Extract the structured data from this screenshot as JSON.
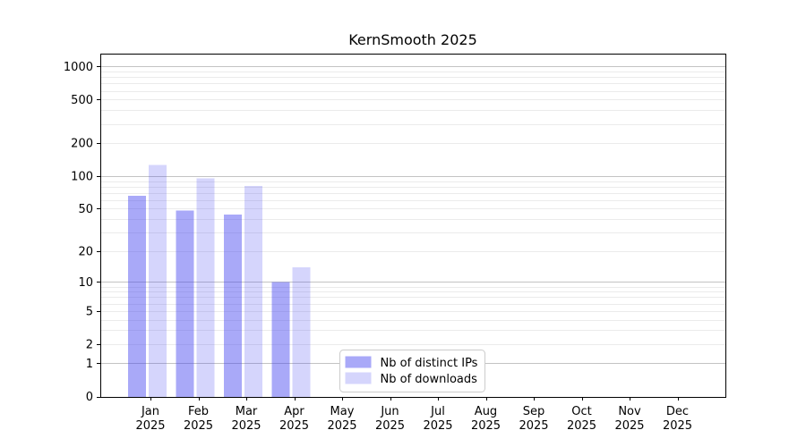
{
  "chart_data": {
    "type": "bar",
    "title": "KernSmooth 2025",
    "categories": [
      "Jan",
      "Feb",
      "Mar",
      "Apr",
      "May",
      "Jun",
      "Jul",
      "Aug",
      "Sep",
      "Oct",
      "Nov",
      "Dec"
    ],
    "category_year": "2025",
    "series": [
      {
        "name": "Nb of distinct IPs",
        "key": "distinct-ips",
        "color": "rgba(64,64,240,0.45)",
        "values": [
          66,
          48,
          44,
          10,
          0,
          0,
          0,
          0,
          0,
          0,
          0,
          0
        ]
      },
      {
        "name": "Nb of downloads",
        "key": "downloads",
        "color": "rgba(64,64,240,0.22)",
        "values": [
          127,
          95,
          81,
          14,
          0,
          0,
          0,
          0,
          0,
          0,
          0,
          0
        ]
      }
    ],
    "y_ticks": [
      0,
      1,
      2,
      5,
      10,
      20,
      50,
      100,
      200,
      500,
      1000
    ],
    "y_scale": "log1p",
    "ylim": [
      0,
      1310
    ],
    "xlabel": "",
    "ylabel": "",
    "grid": {
      "major_values": [
        1,
        10,
        100,
        1000
      ],
      "major_color": "#c3c3c3",
      "minor_color": "#ebebeb"
    },
    "legend": {
      "position": "lower-center",
      "border_color": "#cccccc",
      "background": "#ffffff"
    },
    "colors": {
      "axis": "#000000",
      "text": "#000000"
    }
  }
}
